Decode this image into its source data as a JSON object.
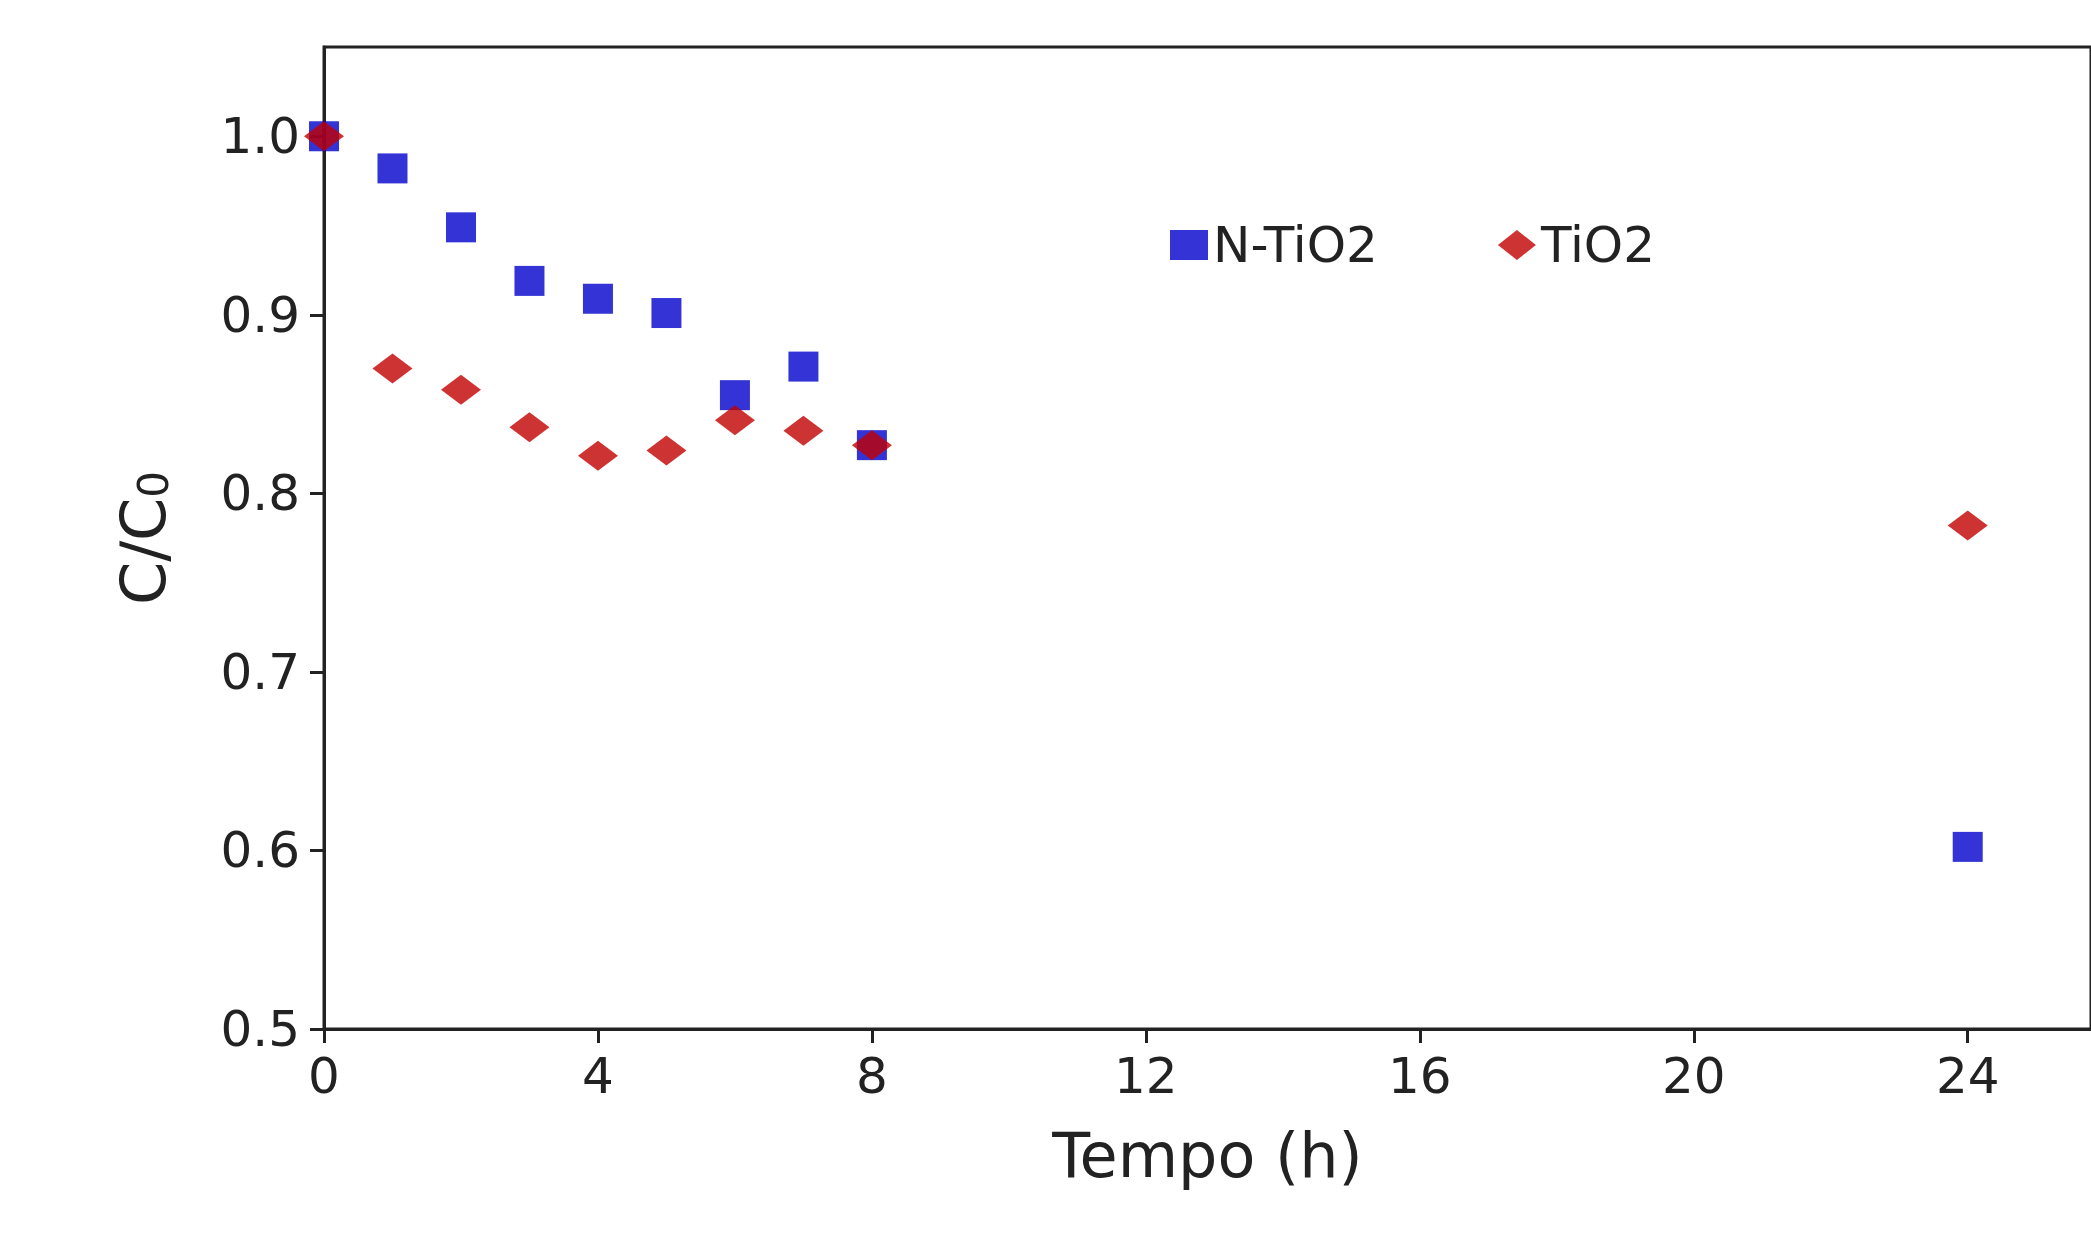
{
  "chart_data": {
    "type": "scatter",
    "xlabel": "Tempo (h)",
    "ylabel": "C/C$_{0}$",
    "xlim": [
      0,
      25.8
    ],
    "xticks": [
      0,
      4,
      8,
      12,
      16,
      20,
      24
    ],
    "ylim": [
      0.5,
      1.05
    ],
    "yticks": [
      {
        "value": 0.5,
        "label": "0.5"
      },
      {
        "value": 0.6,
        "label": "0.6"
      },
      {
        "value": 0.7,
        "label": "0.7"
      },
      {
        "value": 0.8,
        "label": "0.8"
      },
      {
        "value": 0.9,
        "label": "0.9"
      },
      {
        "value": 1.0,
        "label": "1.0"
      }
    ],
    "grid": false,
    "legend": "top right",
    "series": [
      {
        "name": "N-TiO2",
        "color": "#0000cc",
        "marker": "square",
        "x": [
          0,
          1,
          2,
          3,
          4,
          5,
          6,
          7,
          8,
          24
        ],
        "values": [
          1.0,
          0.982,
          0.949,
          0.919,
          0.909,
          0.901,
          0.855,
          0.871,
          0.827,
          0.602
        ]
      },
      {
        "name": "TiO2",
        "color": "#c00000",
        "marker": "diamond",
        "x": [
          0,
          1,
          2,
          3,
          4,
          5,
          6,
          7,
          8,
          24
        ],
        "values": [
          1.0,
          0.87,
          0.858,
          0.837,
          0.821,
          0.824,
          0.841,
          0.835,
          0.827,
          0.782
        ]
      }
    ]
  }
}
